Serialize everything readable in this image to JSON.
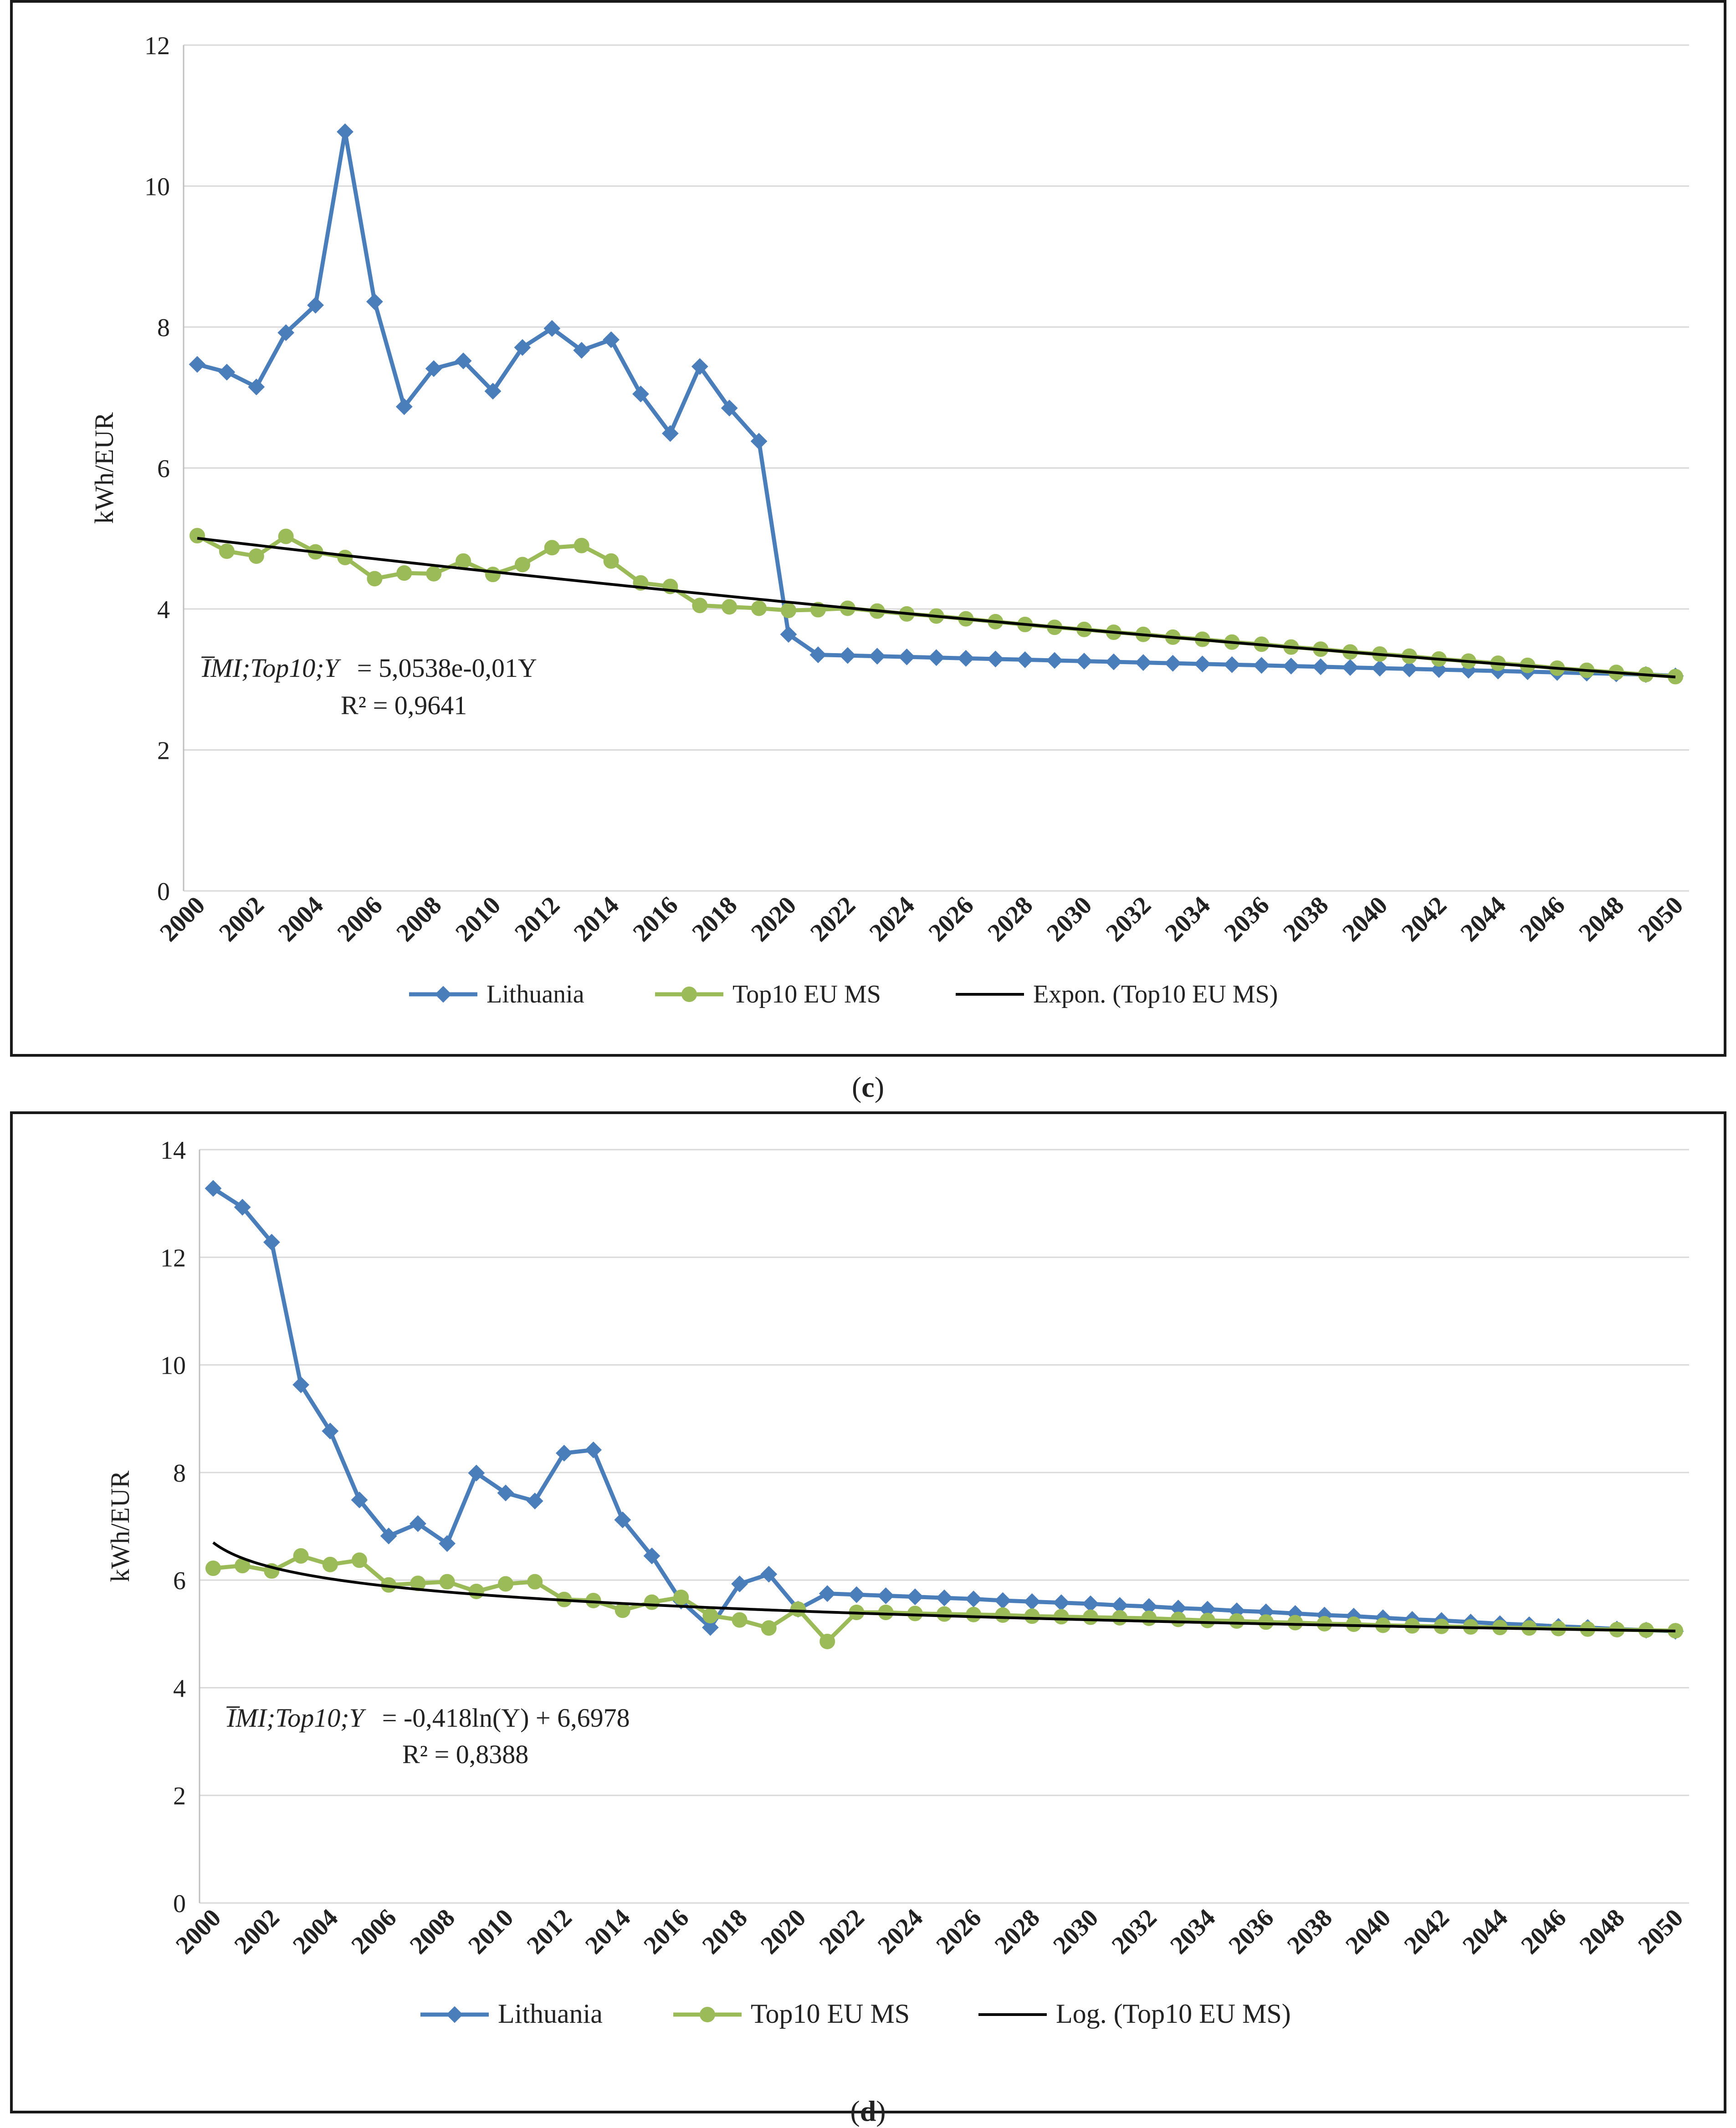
{
  "charts": [
    {
      "panel_label": "c",
      "ylabel": "kWh/EUR",
      "equation_lhs": "I̅MI;Top10;Y",
      "equation_rhs": "= 5,0538e-0,01Y",
      "r_squared": "R² = 0,9641",
      "legend_lithuania": "Lithuania",
      "legend_top10": "Top10 EU MS",
      "legend_trend": "Expon. (Top10 EU MS)"
    },
    {
      "panel_label": "d",
      "ylabel": "kWh/EUR",
      "equation_lhs": "I̅MI;Top10;Y",
      "equation_rhs": "= -0,418ln(Y) + 6,6978",
      "r_squared": "R² = 0,8388",
      "legend_lithuania": "Lithuania",
      "legend_top10": "Top10 EU MS",
      "legend_trend": "Log. (Top10 EU MS)"
    }
  ],
  "colors": {
    "lithuania": "#4a7ebb",
    "top10": "#9bbb59",
    "trend": "#000000",
    "grid": "#d9d9d9"
  },
  "chart_data": [
    {
      "type": "line",
      "title": "",
      "xlabel": "",
      "ylabel": "kWh/EUR",
      "x": [
        2000,
        2001,
        2002,
        2003,
        2004,
        2005,
        2006,
        2007,
        2008,
        2009,
        2010,
        2011,
        2012,
        2013,
        2014,
        2015,
        2016,
        2017,
        2018,
        2019,
        2020,
        2021,
        2022,
        2023,
        2024,
        2025,
        2026,
        2027,
        2028,
        2029,
        2030,
        2031,
        2032,
        2033,
        2034,
        2035,
        2036,
        2037,
        2038,
        2039,
        2040,
        2041,
        2042,
        2043,
        2044,
        2045,
        2046,
        2047,
        2048,
        2049,
        2050
      ],
      "xticks": [
        "2000",
        "2002",
        "2004",
        "2006",
        "2008",
        "2010",
        "2012",
        "2014",
        "2016",
        "2018",
        "2020",
        "2022",
        "2024",
        "2026",
        "2028",
        "2030",
        "2032",
        "2034",
        "2036",
        "2038",
        "2040",
        "2042",
        "2044",
        "2046",
        "2048",
        "2050"
      ],
      "ylim": [
        0,
        12
      ],
      "yticks": [
        0,
        2,
        4,
        6,
        8,
        10,
        12
      ],
      "legend_position": "bottom",
      "series": [
        {
          "name": "Lithuania",
          "marker": "diamond",
          "values": [
            7.47,
            7.36,
            7.15,
            7.92,
            8.31,
            10.77,
            8.36,
            6.87,
            7.41,
            7.52,
            7.09,
            7.71,
            7.98,
            7.67,
            7.82,
            7.05,
            6.49,
            7.44,
            6.85,
            6.38,
            3.64,
            3.35,
            3.34,
            3.33,
            3.32,
            3.31,
            3.3,
            3.29,
            3.28,
            3.27,
            3.26,
            3.25,
            3.24,
            3.23,
            3.22,
            3.21,
            3.2,
            3.19,
            3.18,
            3.17,
            3.16,
            3.15,
            3.14,
            3.13,
            3.12,
            3.11,
            3.1,
            3.09,
            3.08,
            3.07,
            3.05
          ]
        },
        {
          "name": "Top10 EU MS",
          "marker": "circle",
          "values": [
            5.04,
            4.82,
            4.75,
            5.03,
            4.81,
            4.73,
            4.43,
            4.51,
            4.5,
            4.68,
            4.49,
            4.63,
            4.87,
            4.9,
            4.68,
            4.37,
            4.32,
            4.05,
            4.03,
            4.01,
            3.98,
            3.99,
            4.01,
            3.97,
            3.93,
            3.9,
            3.86,
            3.82,
            3.78,
            3.74,
            3.71,
            3.67,
            3.64,
            3.6,
            3.57,
            3.53,
            3.5,
            3.46,
            3.43,
            3.39,
            3.36,
            3.33,
            3.29,
            3.26,
            3.23,
            3.2,
            3.16,
            3.13,
            3.1,
            3.07,
            3.04
          ]
        },
        {
          "name": "Expon. (Top10 EU MS)",
          "trend": "exponential",
          "a": 5.0538,
          "b": -0.01
        }
      ]
    },
    {
      "type": "line",
      "title": "",
      "xlabel": "",
      "ylabel": "kWh/EUR",
      "x": [
        2000,
        2001,
        2002,
        2003,
        2004,
        2005,
        2006,
        2007,
        2008,
        2009,
        2010,
        2011,
        2012,
        2013,
        2014,
        2015,
        2016,
        2017,
        2018,
        2019,
        2020,
        2021,
        2022,
        2023,
        2024,
        2025,
        2026,
        2027,
        2028,
        2029,
        2030,
        2031,
        2032,
        2033,
        2034,
        2035,
        2036,
        2037,
        2038,
        2039,
        2040,
        2041,
        2042,
        2043,
        2044,
        2045,
        2046,
        2047,
        2048,
        2049,
        2050
      ],
      "xticks": [
        "2000",
        "2002",
        "2004",
        "2006",
        "2008",
        "2010",
        "2012",
        "2014",
        "2016",
        "2018",
        "2020",
        "2022",
        "2024",
        "2026",
        "2028",
        "2030",
        "2032",
        "2034",
        "2036",
        "2038",
        "2040",
        "2042",
        "2044",
        "2046",
        "2048",
        "2050"
      ],
      "ylim": [
        0,
        14
      ],
      "yticks": [
        0,
        2,
        4,
        6,
        8,
        10,
        12,
        14
      ],
      "legend_position": "bottom",
      "series": [
        {
          "name": "Lithuania",
          "marker": "diamond",
          "values": [
            13.28,
            12.93,
            12.28,
            9.63,
            8.77,
            7.49,
            6.82,
            7.05,
            6.68,
            7.99,
            7.62,
            7.47,
            8.36,
            8.42,
            7.12,
            6.45,
            5.61,
            5.12,
            5.93,
            6.11,
            5.46,
            5.75,
            5.73,
            5.71,
            5.69,
            5.67,
            5.65,
            5.62,
            5.6,
            5.58,
            5.56,
            5.53,
            5.51,
            5.48,
            5.46,
            5.43,
            5.41,
            5.38,
            5.35,
            5.33,
            5.3,
            5.27,
            5.25,
            5.22,
            5.19,
            5.17,
            5.14,
            5.12,
            5.09,
            5.07,
            5.05
          ]
        },
        {
          "name": "Top10 EU MS",
          "marker": "circle",
          "values": [
            6.22,
            6.27,
            6.17,
            6.45,
            6.29,
            6.37,
            5.91,
            5.94,
            5.97,
            5.79,
            5.93,
            5.97,
            5.64,
            5.62,
            5.44,
            5.59,
            5.68,
            5.34,
            5.26,
            5.11,
            5.46,
            4.86,
            5.4,
            5.4,
            5.38,
            5.37,
            5.36,
            5.35,
            5.33,
            5.32,
            5.31,
            5.3,
            5.29,
            5.27,
            5.25,
            5.24,
            5.22,
            5.21,
            5.19,
            5.18,
            5.16,
            5.15,
            5.14,
            5.13,
            5.12,
            5.11,
            5.1,
            5.09,
            5.08,
            5.07,
            5.06
          ]
        },
        {
          "name": "Log. (Top10 EU MS)",
          "trend": "logarithmic",
          "a": -0.418,
          "b": 6.6978
        }
      ]
    }
  ]
}
